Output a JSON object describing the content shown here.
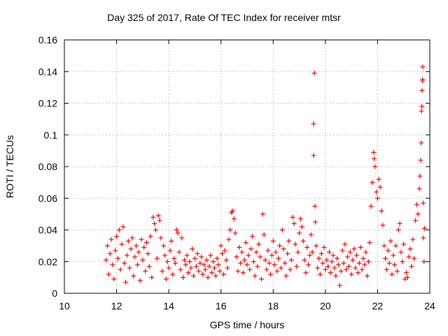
{
  "chart_data": {
    "type": "scatter",
    "title": "Day 325 of 2017, Rate Of TEC Index for receiver mtsr",
    "xlabel": "GPS time / hours",
    "ylabel": "ROTI / TECUs",
    "xlim": [
      10,
      24
    ],
    "ylim": [
      0,
      0.16
    ],
    "xticks": [
      "10",
      "12",
      "14",
      "16",
      "18",
      "20",
      "22",
      "24"
    ],
    "yticks": [
      "0",
      "0.02",
      "0.04",
      "0.06",
      "0.08",
      "0.1",
      "0.12",
      "0.14",
      "0.16"
    ],
    "grid": true,
    "marker": "+",
    "color": "#ff0000",
    "series": [
      {
        "name": "ROTI",
        "points": [
          [
            11.6,
            0.021
          ],
          [
            11.65,
            0.03
          ],
          [
            11.7,
            0.012
          ],
          [
            11.75,
            0.025
          ],
          [
            11.8,
            0.034
          ],
          [
            11.85,
            0.018
          ],
          [
            11.9,
            0.009
          ],
          [
            11.95,
            0.027
          ],
          [
            12.0,
            0.036
          ],
          [
            12.05,
            0.022
          ],
          [
            12.1,
            0.04
          ],
          [
            12.15,
            0.015
          ],
          [
            12.2,
            0.031
          ],
          [
            12.25,
            0.042
          ],
          [
            12.3,
            0.019
          ],
          [
            12.35,
            0.007
          ],
          [
            12.4,
            0.024
          ],
          [
            12.45,
            0.033
          ],
          [
            12.5,
            0.016
          ],
          [
            12.55,
            0.028
          ],
          [
            12.6,
            0.035
          ],
          [
            12.65,
            0.011
          ],
          [
            12.7,
            0.023
          ],
          [
            12.75,
            0.03
          ],
          [
            12.8,
            0.018
          ],
          [
            12.85,
            0.026
          ],
          [
            12.9,
            0.008
          ],
          [
            12.95,
            0.034
          ],
          [
            13.0,
            0.021
          ],
          [
            13.05,
            0.029
          ],
          [
            13.1,
            0.014
          ],
          [
            13.15,
            0.032
          ],
          [
            13.2,
            0.025
          ],
          [
            13.25,
            0.017
          ],
          [
            13.3,
            0.036
          ],
          [
            13.35,
            0.01
          ],
          [
            13.4,
            0.048
          ],
          [
            13.45,
            0.044
          ],
          [
            13.5,
            0.04
          ],
          [
            13.55,
            0.022
          ],
          [
            13.6,
            0.049
          ],
          [
            13.65,
            0.046
          ],
          [
            13.7,
            0.035
          ],
          [
            13.75,
            0.014
          ],
          [
            13.8,
            0.03
          ],
          [
            13.85,
            0.024
          ],
          [
            13.9,
            0.009
          ],
          [
            13.95,
            0.02
          ],
          [
            14.0,
            0.016
          ],
          [
            14.05,
            0.027
          ],
          [
            14.1,
            0.033
          ],
          [
            14.15,
            0.012
          ],
          [
            14.2,
            0.022
          ],
          [
            14.25,
            0.019
          ],
          [
            14.3,
            0.04
          ],
          [
            14.35,
            0.038
          ],
          [
            14.4,
            0.026
          ],
          [
            14.45,
            0.015
          ],
          [
            14.5,
            0.035
          ],
          [
            14.55,
            0.01
          ],
          [
            14.6,
            0.021
          ],
          [
            14.65,
            0.018
          ],
          [
            14.7,
            0.024
          ],
          [
            14.75,
            0.013
          ],
          [
            14.8,
            0.02
          ],
          [
            14.85,
            0.016
          ],
          [
            14.9,
            0.028
          ],
          [
            14.95,
            0.011
          ],
          [
            15.0,
            0.022
          ],
          [
            15.05,
            0.017
          ],
          [
            15.1,
            0.025
          ],
          [
            15.15,
            0.014
          ],
          [
            15.2,
            0.019
          ],
          [
            15.25,
            0.023
          ],
          [
            15.3,
            0.012
          ],
          [
            15.35,
            0.018
          ],
          [
            15.4,
            0.015
          ],
          [
            15.45,
            0.021
          ],
          [
            15.5,
            0.01
          ],
          [
            15.55,
            0.017
          ],
          [
            15.6,
            0.024
          ],
          [
            15.65,
            0.013
          ],
          [
            15.7,
            0.02
          ],
          [
            15.75,
            0.016
          ],
          [
            15.8,
            0.011
          ],
          [
            15.85,
            0.022
          ],
          [
            15.9,
            0.018
          ],
          [
            15.95,
            0.014
          ],
          [
            16.0,
            0.03
          ],
          [
            16.05,
            0.025
          ],
          [
            16.1,
            0.012
          ],
          [
            16.15,
            0.027
          ],
          [
            16.2,
            0.021
          ],
          [
            16.25,
            0.016
          ],
          [
            16.3,
            0.034
          ],
          [
            16.35,
            0.04
          ],
          [
            16.4,
            0.051
          ],
          [
            16.45,
            0.052
          ],
          [
            16.5,
            0.047
          ],
          [
            16.55,
            0.038
          ],
          [
            16.6,
            0.023
          ],
          [
            16.65,
            0.014
          ],
          [
            16.7,
            0.029
          ],
          [
            16.75,
            0.019
          ],
          [
            16.8,
            0.026
          ],
          [
            16.85,
            0.013
          ],
          [
            16.9,
            0.021
          ],
          [
            16.95,
            0.032
          ],
          [
            17.0,
            0.018
          ],
          [
            17.05,
            0.024
          ],
          [
            17.1,
            0.015
          ],
          [
            17.15,
            0.028
          ],
          [
            17.2,
            0.036
          ],
          [
            17.25,
            0.02
          ],
          [
            17.3,
            0.011
          ],
          [
            17.35,
            0.026
          ],
          [
            17.4,
            0.017
          ],
          [
            17.45,
            0.031
          ],
          [
            17.5,
            0.023
          ],
          [
            17.55,
            0.009
          ],
          [
            17.6,
            0.05
          ],
          [
            17.65,
            0.037
          ],
          [
            17.7,
            0.021
          ],
          [
            17.75,
            0.015
          ],
          [
            17.8,
            0.027
          ],
          [
            17.85,
            0.019
          ],
          [
            17.9,
            0.012
          ],
          [
            17.95,
            0.024
          ],
          [
            18.0,
            0.033
          ],
          [
            18.05,
            0.018
          ],
          [
            18.1,
            0.026
          ],
          [
            18.15,
            0.014
          ],
          [
            18.2,
            0.022
          ],
          [
            18.25,
            0.03
          ],
          [
            18.3,
            0.016
          ],
          [
            18.35,
            0.04
          ],
          [
            18.4,
            0.028
          ],
          [
            18.45,
            0.019
          ],
          [
            18.5,
            0.011
          ],
          [
            18.55,
            0.025
          ],
          [
            18.6,
            0.033
          ],
          [
            18.65,
            0.015
          ],
          [
            18.7,
            0.021
          ],
          [
            18.75,
            0.048
          ],
          [
            18.8,
            0.044
          ],
          [
            18.85,
            0.031
          ],
          [
            18.9,
            0.017
          ],
          [
            18.95,
            0.026
          ],
          [
            19.0,
            0.038
          ],
          [
            19.05,
            0.047
          ],
          [
            19.1,
            0.042
          ],
          [
            19.15,
            0.033
          ],
          [
            19.2,
            0.021
          ],
          [
            19.25,
            0.013
          ],
          [
            19.3,
            0.029
          ],
          [
            19.35,
            0.018
          ],
          [
            19.4,
            0.024
          ],
          [
            19.45,
            0.037
          ],
          [
            19.5,
            0.026
          ],
          [
            19.55,
            0.087
          ],
          [
            19.55,
            0.107
          ],
          [
            19.58,
            0.139
          ],
          [
            19.6,
            0.055
          ],
          [
            19.62,
            0.045
          ],
          [
            19.65,
            0.03
          ],
          [
            19.7,
            0.016
          ],
          [
            19.75,
            0.022
          ],
          [
            19.8,
            0.012
          ],
          [
            19.85,
            0.025
          ],
          [
            19.9,
            0.019
          ],
          [
            19.95,
            0.029
          ],
          [
            20.0,
            0.015
          ],
          [
            20.05,
            0.021
          ],
          [
            20.1,
            0.017
          ],
          [
            20.15,
            0.026
          ],
          [
            20.2,
            0.013
          ],
          [
            20.25,
            0.02
          ],
          [
            20.3,
            0.024
          ],
          [
            20.35,
            0.016
          ],
          [
            20.4,
            0.011
          ],
          [
            20.45,
            0.022
          ],
          [
            20.5,
            0.018
          ],
          [
            20.55,
            0.005
          ],
          [
            20.6,
            0.014
          ],
          [
            20.65,
            0.027
          ],
          [
            20.7,
            0.019
          ],
          [
            20.75,
            0.031
          ],
          [
            20.8,
            0.015
          ],
          [
            20.85,
            0.023
          ],
          [
            20.9,
            0.017
          ],
          [
            20.95,
            0.026
          ],
          [
            21.0,
            0.012
          ],
          [
            21.05,
            0.021
          ],
          [
            21.1,
            0.028
          ],
          [
            21.15,
            0.016
          ],
          [
            21.2,
            0.024
          ],
          [
            21.25,
            0.013
          ],
          [
            21.3,
            0.019
          ],
          [
            21.35,
            0.029
          ],
          [
            21.4,
            0.015
          ],
          [
            21.45,
            0.022
          ],
          [
            21.5,
            0.018
          ],
          [
            21.55,
            0.026
          ],
          [
            21.6,
            0.011
          ],
          [
            21.65,
            0.02
          ],
          [
            21.7,
            0.032
          ],
          [
            21.75,
            0.055
          ],
          [
            21.8,
            0.07
          ],
          [
            21.85,
            0.089
          ],
          [
            21.87,
            0.085
          ],
          [
            21.9,
            0.08
          ],
          [
            21.95,
            0.064
          ],
          [
            22.0,
            0.06
          ],
          [
            22.05,
            0.072
          ],
          [
            22.1,
            0.067
          ],
          [
            22.15,
            0.052
          ],
          [
            22.2,
            0.043
          ],
          [
            22.25,
            0.03
          ],
          [
            22.3,
            0.022
          ],
          [
            22.35,
            0.015
          ],
          [
            22.4,
            0.027
          ],
          [
            22.45,
            0.019
          ],
          [
            22.5,
            0.033
          ],
          [
            22.55,
            0.012
          ],
          [
            22.6,
            0.024
          ],
          [
            22.65,
            0.018
          ],
          [
            22.7,
            0.03
          ],
          [
            22.75,
            0.014
          ],
          [
            22.8,
            0.04
          ],
          [
            22.85,
            0.044
          ],
          [
            22.9,
            0.026
          ],
          [
            22.95,
            0.02
          ],
          [
            23.0,
            0.031
          ],
          [
            23.05,
            0.009
          ],
          [
            23.1,
            0.013
          ],
          [
            23.15,
            0.01
          ],
          [
            23.2,
            0.023
          ],
          [
            23.25,
            0.028
          ],
          [
            23.3,
            0.017
          ],
          [
            23.35,
            0.034
          ],
          [
            23.4,
            0.022
          ],
          [
            23.45,
            0.046
          ],
          [
            23.5,
            0.056
          ],
          [
            23.55,
            0.05
          ],
          [
            23.6,
            0.066
          ],
          [
            23.62,
            0.074
          ],
          [
            23.65,
            0.084
          ],
          [
            23.67,
            0.095
          ],
          [
            23.68,
            0.115
          ],
          [
            23.7,
            0.118
          ],
          [
            23.7,
            0.128
          ],
          [
            23.72,
            0.134
          ],
          [
            23.72,
            0.135
          ],
          [
            23.73,
            0.143
          ],
          [
            23.75,
            0.057
          ],
          [
            23.75,
            0.035
          ],
          [
            23.78,
            0.02
          ],
          [
            23.8,
            0.041
          ]
        ]
      }
    ]
  }
}
